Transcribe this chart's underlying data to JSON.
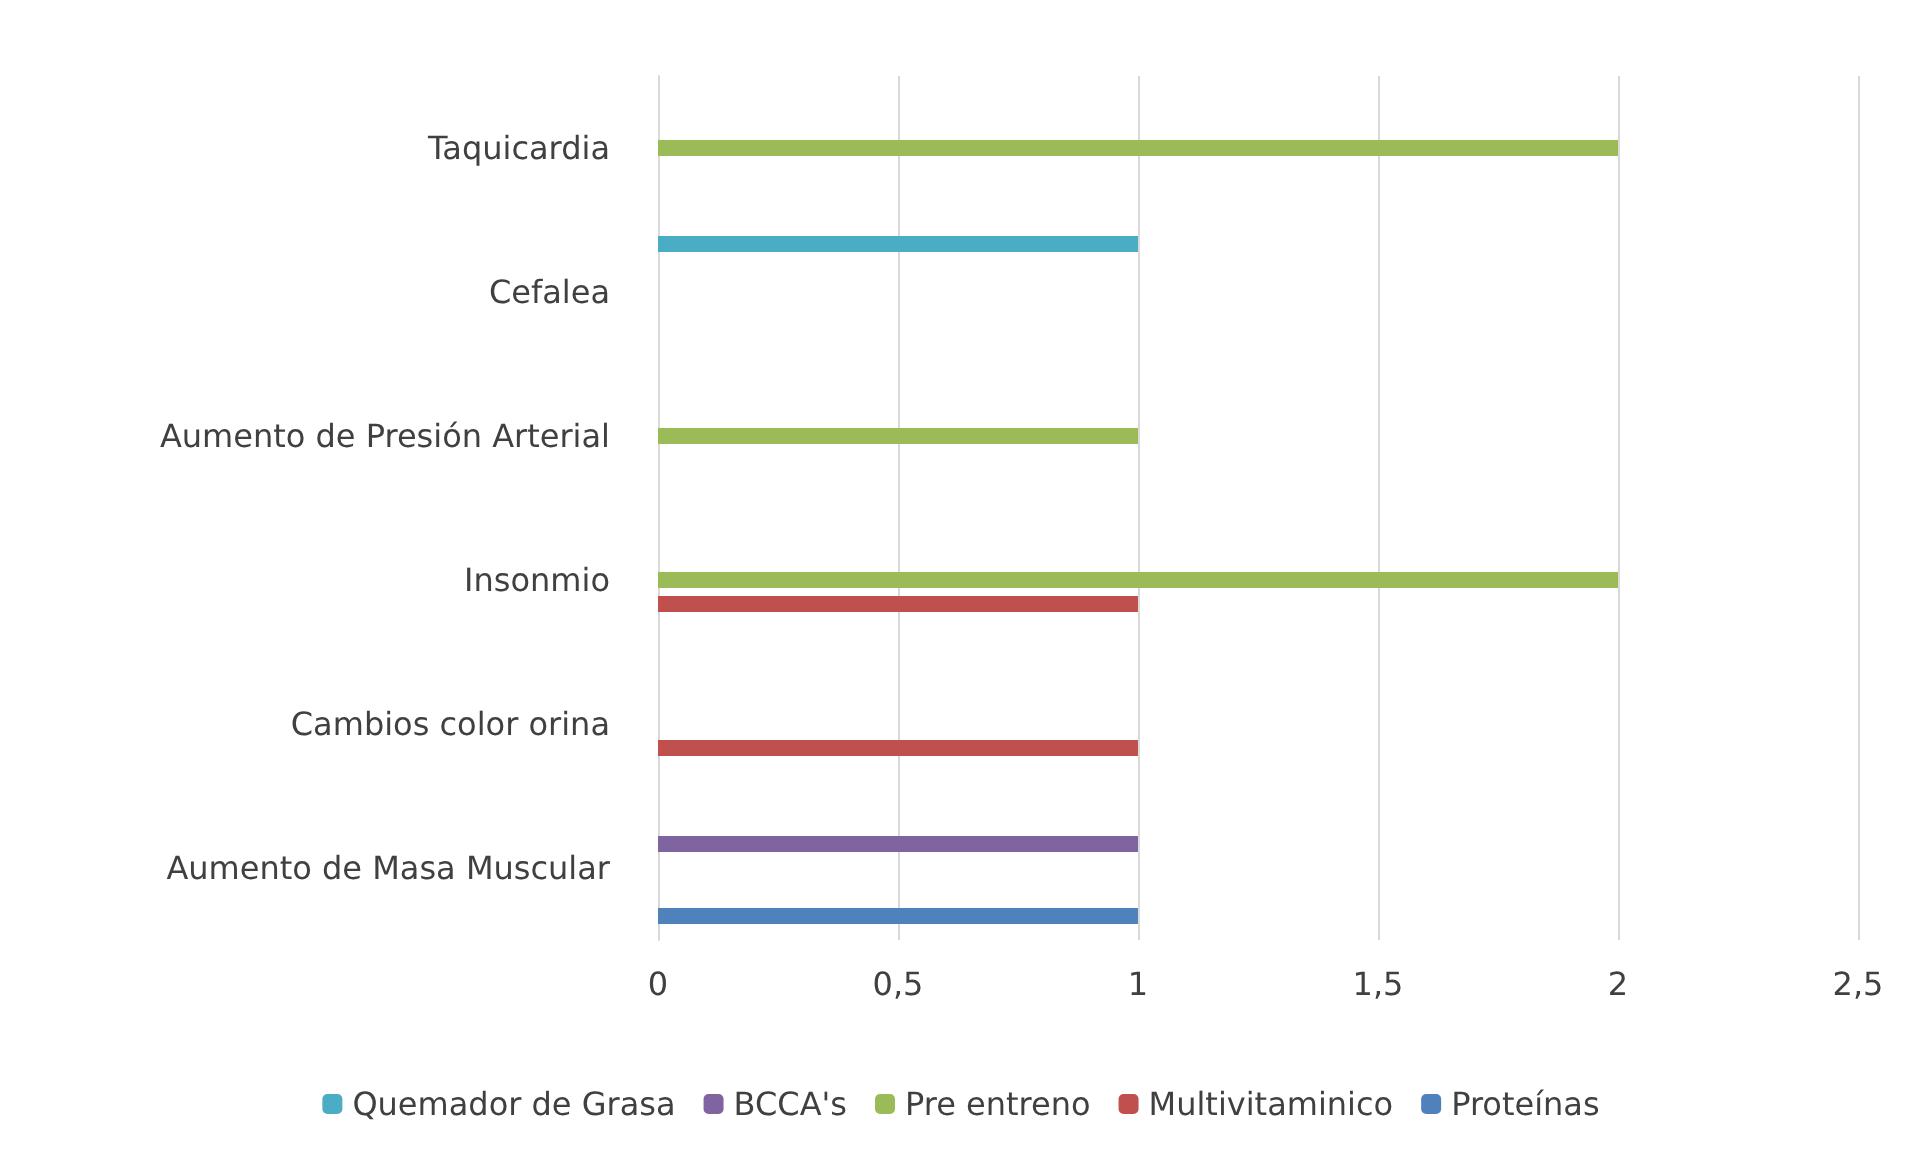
{
  "chart_data": {
    "type": "bar",
    "orientation": "horizontal",
    "categories": [
      "Taquicardia",
      "Cefalea",
      "Aumento de Presión Arterial",
      "Insonmio",
      "Cambios color orina",
      "Aumento de Masa Muscular"
    ],
    "series": [
      {
        "name": "Quemador de Grasa",
        "color": "#4bacc6",
        "values": [
          0,
          1,
          0,
          0,
          0,
          0
        ]
      },
      {
        "name": "BCCA's",
        "color": "#8064a2",
        "values": [
          0,
          0,
          0,
          0,
          0,
          1
        ]
      },
      {
        "name": "Pre entreno",
        "color": "#9bbb59",
        "values": [
          2,
          0,
          1,
          2,
          0,
          0
        ]
      },
      {
        "name": "Multivitaminico",
        "color": "#c0504d",
        "values": [
          0,
          0,
          0,
          1,
          1,
          0
        ]
      },
      {
        "name": "Proteínas",
        "color": "#4f81bd",
        "values": [
          0,
          0,
          0,
          0,
          0,
          1
        ]
      }
    ],
    "xlim": [
      0,
      2.5
    ],
    "xticks": [
      0,
      {
        "value": 0.5,
        "label": "0,5"
      },
      1,
      {
        "value": 1.5,
        "label": "1,5"
      },
      2,
      {
        "value": 2.5,
        "label": "2,5"
      }
    ],
    "grid": "x",
    "legend": "bottom"
  }
}
